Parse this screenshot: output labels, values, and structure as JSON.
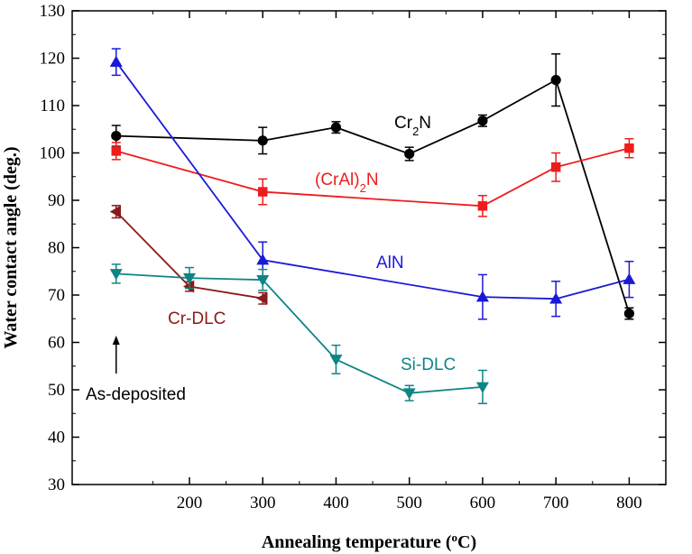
{
  "chart_data": {
    "type": "line",
    "xlabel_main": "Annealing temperature (",
    "xlabel_sup": "o",
    "xlabel_tail": "C)",
    "ylabel": "Water contact angle (deg.)",
    "xlim": [
      40,
      850
    ],
    "ylim": [
      30,
      130
    ],
    "xticks": [
      200,
      300,
      400,
      500,
      600,
      700,
      800
    ],
    "yticks": [
      30,
      40,
      50,
      60,
      70,
      80,
      90,
      100,
      110,
      120,
      130
    ],
    "series": [
      {
        "name_main": "Cr",
        "name_sub": "2",
        "name_tail": "N",
        "color": "#000000",
        "marker": "circle",
        "x": [
          100,
          300,
          400,
          500,
          600,
          700,
          800
        ],
        "y": [
          103.6,
          102.6,
          105.4,
          99.8,
          106.8,
          115.4,
          66.1
        ],
        "err": [
          2.2,
          2.8,
          1.2,
          1.4,
          1.2,
          5.5,
          1.2
        ]
      },
      {
        "name_main": "(CrAl)",
        "name_sub": "2",
        "name_tail": "N",
        "color": "#ee1c1c",
        "marker": "square",
        "x": [
          100,
          300,
          600,
          700,
          800
        ],
        "y": [
          100.4,
          91.8,
          88.8,
          97.0,
          101.0
        ],
        "err": [
          1.8,
          2.7,
          2.2,
          3.0,
          2.0
        ]
      },
      {
        "name_main": "AlN",
        "name_sub": "",
        "name_tail": "",
        "color": "#1a1ad6",
        "marker": "triangle-up",
        "x": [
          100,
          300,
          600,
          700,
          800
        ],
        "y": [
          119.2,
          77.4,
          69.6,
          69.2,
          73.3
        ],
        "err": [
          2.8,
          3.8,
          4.7,
          3.7,
          3.8
        ]
      },
      {
        "name_main": "Cr-DLC",
        "name_sub": "",
        "name_tail": "",
        "color": "#8b1a1a",
        "marker": "triangle-left",
        "x": [
          100,
          200,
          300
        ],
        "y": [
          87.6,
          71.8,
          69.3
        ],
        "err": [
          1.3,
          1.0,
          1.2
        ]
      },
      {
        "name_main": "Si-DLC",
        "name_sub": "",
        "name_tail": "",
        "color": "#0e8585",
        "marker": "triangle-down",
        "x": [
          100,
          200,
          300,
          400,
          500,
          600
        ],
        "y": [
          74.5,
          73.6,
          73.2,
          56.4,
          49.3,
          50.6
        ],
        "err": [
          2.0,
          2.2,
          2.2,
          3.0,
          1.6,
          3.5
        ]
      }
    ],
    "annotation": "As-deposited"
  }
}
